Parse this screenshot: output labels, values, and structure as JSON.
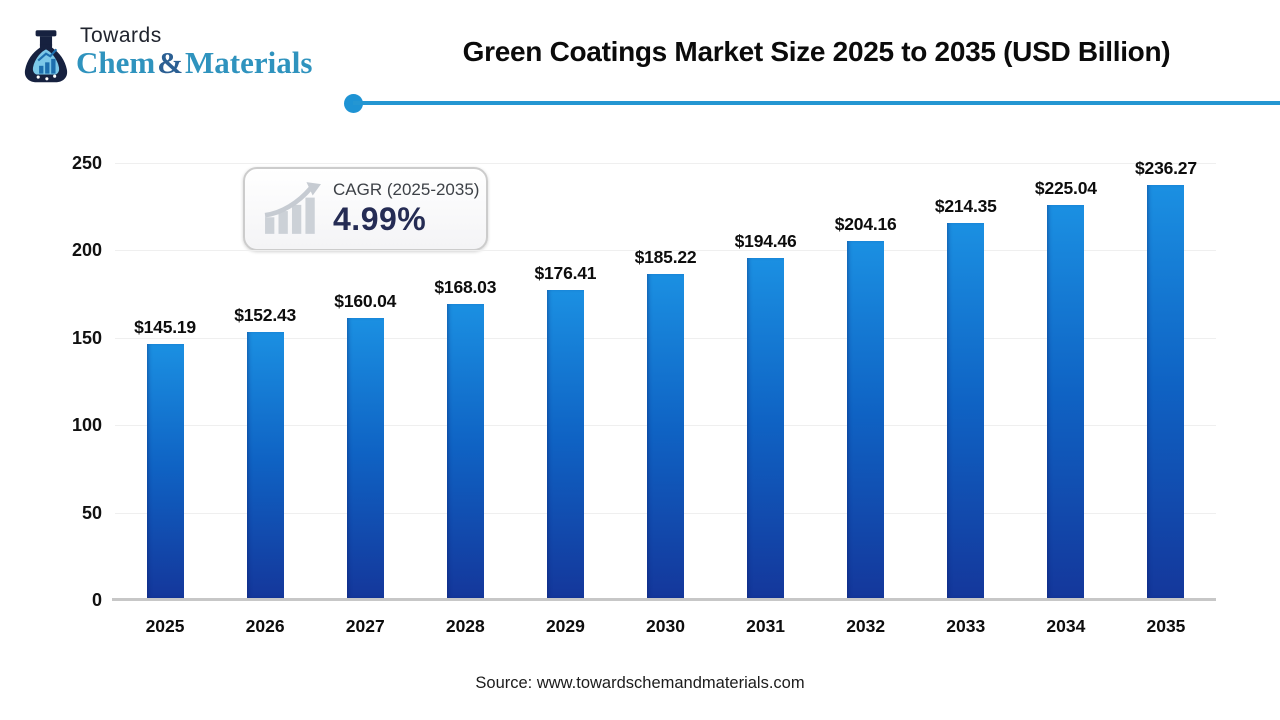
{
  "logo": {
    "towards": "Towards",
    "chem": "Chem",
    "ampersand": "&",
    "materials": "Materials",
    "icon": "flask-icon"
  },
  "header": {
    "title": "Green Coatings Market Size 2025 to 2035 (USD Billion)"
  },
  "cagr_badge": {
    "icon": "bar-growth-arrow-icon",
    "label": "CAGR (2025-2035)",
    "value": "4.99%"
  },
  "chart_data": {
    "type": "bar",
    "title": "Green Coatings Market Size 2025 to 2035 (USD Billion)",
    "categories": [
      "2025",
      "2026",
      "2027",
      "2028",
      "2029",
      "2030",
      "2031",
      "2032",
      "2033",
      "2034",
      "2035"
    ],
    "values": [
      145.19,
      152.43,
      160.04,
      168.03,
      176.41,
      185.22,
      194.46,
      204.16,
      214.35,
      225.04,
      236.27
    ],
    "value_labels": [
      "$145.19",
      "$152.43",
      "$160.04",
      "$168.03",
      "$176.41",
      "$185.22",
      "$194.46",
      "$204.16",
      "$214.35",
      "$225.04",
      "$236.27"
    ],
    "xlabel": "",
    "ylabel": "",
    "ylim": [
      0,
      250
    ],
    "yticks": [
      0,
      50,
      100,
      150,
      200,
      250
    ],
    "grid": "horizontal light gray",
    "legend": "none",
    "bar_gradient_top": "#1b90e2",
    "bar_gradient_mid": "#0f63c4",
    "bar_gradient_bottom": "#14379b"
  },
  "footer": {
    "source": "Source: www.towardschemandmaterials.com"
  },
  "colors": {
    "accent_line": "#2496d2",
    "brand_teal": "#2f93be",
    "brand_navy": "#16213f",
    "cagr_value_navy": "#252c54",
    "title_black": "#0b0b0b"
  }
}
